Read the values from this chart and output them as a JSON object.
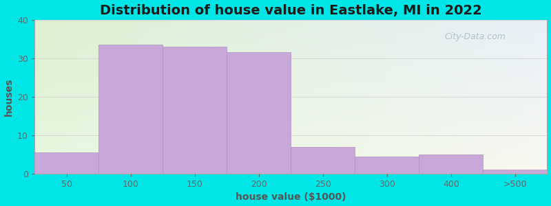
{
  "title": "Distribution of house value in Eastlake, MI in 2022",
  "xlabel": "house value ($1000)",
  "ylabel": "houses",
  "bar_labels": [
    "50",
    "100",
    "150",
    "200",
    "250",
    "300",
    "400",
    ">500"
  ],
  "bar_values": [
    5.5,
    33.5,
    33.0,
    31.5,
    7.0,
    4.5,
    5.0,
    1.0
  ],
  "bar_color": "#c8a8d8",
  "bar_edgecolor": "#b090c0",
  "bg_outer": "#00e5e5",
  "bg_plot_topleft": "#ddf0d0",
  "bg_plot_topright": "#e8f0f8",
  "bg_plot_bottomleft": "#e8f8e0",
  "bg_plot_bottomright": "#f5f5ee",
  "ylim": [
    0,
    40
  ],
  "yticks": [
    0,
    10,
    20,
    30,
    40
  ],
  "title_fontsize": 14,
  "axis_label_fontsize": 10,
  "tick_fontsize": 9,
  "watermark_text": "City-Data.com",
  "watermark_color": "#aabccc",
  "grid_color": "#d8d8d8",
  "spine_color": "#aaaaaa"
}
